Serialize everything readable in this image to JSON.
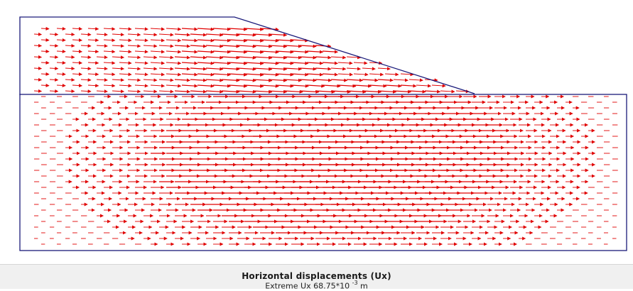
{
  "caption": {
    "title": "Horizontal displacements (Ux)",
    "extreme_prefix": "Extreme Ux 68.75*10 ",
    "extreme_exponent": "-3",
    "extreme_unit": " m"
  },
  "colors": {
    "arrow": "#e00000",
    "boundary": "#1a1a7a",
    "background": "#ffffff",
    "strip": "#f0f0f0"
  },
  "plot": {
    "type": "vector-field",
    "quantity": "Horizontal displacements (Ux)",
    "extreme_value": 68.75,
    "extreme_scale": "10^-3 m"
  }
}
